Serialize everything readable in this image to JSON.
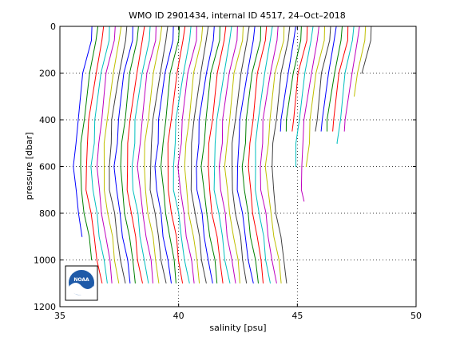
{
  "chart_data": {
    "type": "line",
    "title": "WMO ID 2901434, internal ID 4517, 24–Oct–2018",
    "xlabel": "salinity [psu]",
    "ylabel": "pressure [dbar]",
    "xlim": [
      35,
      50
    ],
    "ylim": [
      0,
      1200
    ],
    "y_reversed": true,
    "xticks": [
      "35",
      "40",
      "45",
      "50"
    ],
    "yticks": [
      "0",
      "200",
      "400",
      "600",
      "800",
      "1000",
      "1200"
    ],
    "grid": "dotted",
    "legend": "none",
    "logo": "NOAA",
    "series_colors": [
      "#0000ff",
      "#008000",
      "#ff0000",
      "#00bfbf",
      "#bf00bf",
      "#bfbf00",
      "#404040"
    ],
    "profile_count": 49,
    "profile_pressure_levels": [
      0,
      60,
      200,
      400,
      500,
      600,
      700,
      800,
      900,
      1000,
      1100
    ],
    "profile_base_salinity": [
      36.35,
      36.6,
      36.84,
      37.09,
      37.33,
      37.58,
      37.82,
      38.07,
      38.31,
      38.56,
      38.8,
      39.05,
      39.29,
      39.54,
      39.78,
      40.03,
      40.27,
      40.52,
      40.76,
      41.01,
      41.25,
      41.5,
      41.74,
      41.99,
      42.23,
      42.48,
      42.72,
      42.97,
      43.21,
      43.46,
      43.7,
      43.95,
      44.19,
      44.44,
      44.68,
      44.93,
      45.17,
      45.42,
      45.66,
      45.91,
      46.15,
      46.4,
      46.64,
      46.89,
      47.13,
      47.38,
      47.62,
      47.87,
      48.11
    ],
    "profile_shape_offsets": [
      0,
      -0.05,
      -0.35,
      -0.6,
      -0.68,
      -0.75,
      -0.7,
      -0.55,
      -0.4,
      -0.25,
      -0.1
    ],
    "profile_max_pressure": [
      900,
      1000,
      1100,
      1100,
      1100,
      1100,
      1100,
      1100,
      1100,
      1100,
      1100,
      1100,
      1100,
      1100,
      1100,
      1100,
      1100,
      1100,
      1100,
      1100,
      1100,
      1100,
      1100,
      1100,
      1100,
      1100,
      1100,
      1100,
      1100,
      1100,
      1100,
      1100,
      1100,
      1100,
      1100,
      450,
      450,
      450,
      600,
      750,
      600,
      450,
      450,
      450,
      450,
      500,
      450,
      300,
      200
    ]
  }
}
